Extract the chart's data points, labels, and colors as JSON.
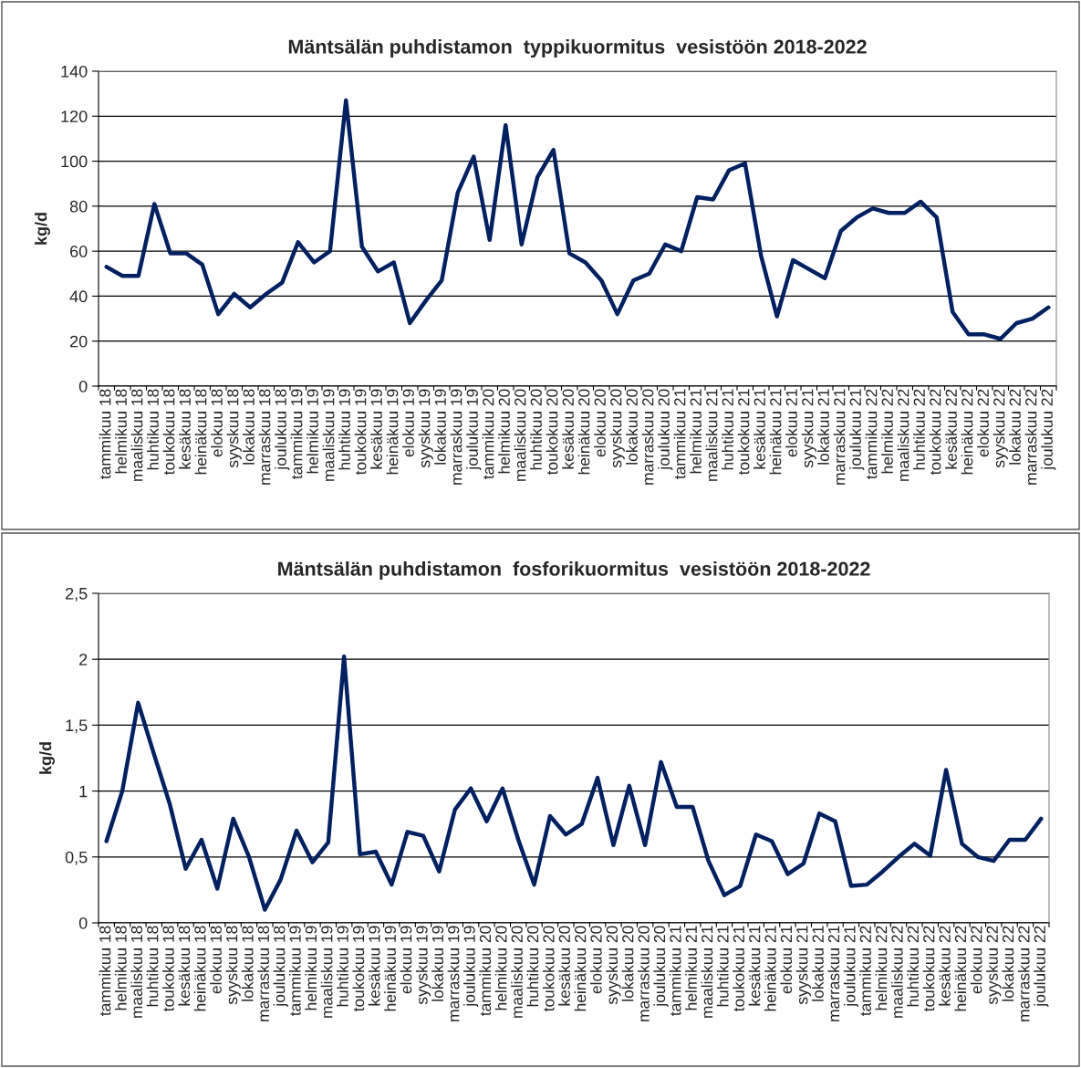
{
  "chart_data": [
    {
      "type": "line",
      "title": "Mäntsälän puhdistamon  typpikuormitus  vesistöön 2018-2022",
      "ylabel": "kg/d",
      "categories": [
        "tammikuu 18",
        "helmikuu 18",
        "maaliskuu 18",
        "huhtikuu 18",
        "toukokuu 18",
        "kesäkuu 18",
        "heinäkuu 18",
        "elokuu 18",
        "syyskuu 18",
        "lokakuu 18",
        "marraskuu 18",
        "joulukuu 18",
        "tammikuu 19",
        "helmikuu 19",
        "maaliskuu 19",
        "huhtikuu 19",
        "toukokuu 19",
        "kesäkuu 19",
        "heinäkuu 19",
        "elokuu 19",
        "syyskuu 19",
        "lokakuu 19",
        "marraskuu 19",
        "joulukuu 19",
        "tammikuu 20",
        "helmikuu 20",
        "maaliskuu 20",
        "huhtikuu 20",
        "toukokuu 20",
        "kesäkuu 20",
        "heinäkuu 20",
        "elokuu 20",
        "syyskuu 20",
        "lokakuu 20",
        "marraskuu 20",
        "joulukuu 20",
        "tammikuu 21",
        "helmikuu 21",
        "maaliskuu 21",
        "huhtikuu 21",
        "toukokuu 21",
        "kesäkuu 21",
        "heinäkuu 21",
        "elokuu 21",
        "syyskuu 21",
        "lokakuu 21",
        "marraskuu 21",
        "joulukuu 21",
        "tammikuu 22",
        "helmikuu 22",
        "maaliskuu 22",
        "huhtikuu 22",
        "toukokuu 22",
        "kesäkuu 22",
        "heinäkuu 22",
        "elokuu 22",
        "syyskuu 22",
        "lokakuu 22",
        "marraskuu 22",
        "joulukuu 22"
      ],
      "series": [
        {
          "color": "#002060",
          "values": [
            53,
            49,
            49,
            81,
            59,
            59,
            54,
            32,
            41,
            35,
            41,
            46,
            64,
            55,
            60,
            127,
            62,
            51,
            55,
            28,
            38,
            47,
            86,
            102,
            65,
            116,
            63,
            93,
            105,
            59,
            55,
            47,
            32,
            47,
            50,
            63,
            60,
            84,
            83,
            96,
            99,
            58,
            31,
            56,
            52,
            48,
            69,
            75,
            79,
            77,
            77,
            82,
            75,
            33,
            23,
            23,
            21,
            28,
            30,
            35
          ]
        }
      ],
      "ylim": [
        0,
        140
      ],
      "yticks": [
        0,
        20,
        40,
        60,
        80,
        100,
        120,
        140
      ],
      "grid": "y",
      "marker": "none",
      "line_style": "solid"
    },
    {
      "type": "line",
      "title": "Mäntsälän puhdistamon  fosforikuormitus  vesistöön 2018-2022",
      "ylabel": "kg/d",
      "categories": [
        "tammikuu 18",
        "helmikuu 18",
        "maaliskuu 18",
        "huhtikuu 18",
        "toukokuu 18",
        "kesäkuu 18",
        "heinäkuu 18",
        "elokuu 18",
        "syyskuu 18",
        "lokakuu 18",
        "marraskuu 18",
        "joulukuu 18",
        "tammikuu 19",
        "helmikuu 19",
        "maaliskuu 19",
        "huhtikuu 19",
        "toukokuu 19",
        "kesäkuu 19",
        "heinäkuu 19",
        "elokuu 19",
        "syyskuu 19",
        "lokakuu 19",
        "marraskuu 19",
        "joulukuu 19",
        "tammikuu 20",
        "helmikuu 20",
        "maaliskuu 20",
        "huhtikuu 20",
        "toukokuu 20",
        "kesäkuu 20",
        "heinäkuu 20",
        "elokuu 20",
        "syyskuu 20",
        "lokakuu 20",
        "marraskuu 20",
        "joulukuu 20",
        "tammikuu 21",
        "helmikuu 21",
        "maaliskuu 21",
        "huhtikuu 21",
        "toukokuu 21",
        "kesäkuu 21",
        "heinäkuu 21",
        "elokuu 21",
        "syyskuu 21",
        "lokakuu 21",
        "marraskuu 21",
        "joulukuu 21",
        "tammikuu 22",
        "helmikuu 22",
        "maaliskuu 22",
        "huhtikuu 22",
        "toukokuu 22",
        "kesäkuu 22",
        "heinäkuu 22",
        "elokuu 22",
        "syyskuu 22",
        "lokakuu 22",
        "marraskuu 22",
        "joulukuu 22"
      ],
      "series": [
        {
          "color": "#002060",
          "values": [
            0.62,
            1.0,
            1.67,
            1.28,
            0.9,
            0.41,
            0.63,
            0.26,
            0.79,
            0.5,
            0.1,
            0.33,
            0.7,
            0.46,
            0.61,
            2.02,
            0.52,
            0.54,
            0.29,
            0.69,
            0.66,
            0.39,
            0.86,
            1.02,
            0.77,
            1.02,
            0.63,
            0.29,
            0.81,
            0.67,
            0.75,
            1.1,
            0.59,
            1.04,
            0.59,
            1.22,
            0.88,
            0.88,
            0.47,
            0.21,
            0.28,
            0.67,
            0.62,
            0.37,
            0.45,
            0.83,
            0.77,
            0.28,
            0.29,
            0.39,
            0.5,
            0.6,
            0.51,
            1.16,
            0.6,
            0.5,
            0.47,
            0.63,
            0.63,
            0.79
          ]
        }
      ],
      "ylim": [
        0,
        2.5
      ],
      "yticks": [
        0,
        {
          "value": 0.5,
          "label": "0,5"
        },
        1,
        {
          "value": 1.5,
          "label": "1,5"
        },
        2,
        {
          "value": 2.5,
          "label": "2,5"
        }
      ],
      "grid": "y",
      "marker": "none",
      "line_style": "solid"
    }
  ]
}
